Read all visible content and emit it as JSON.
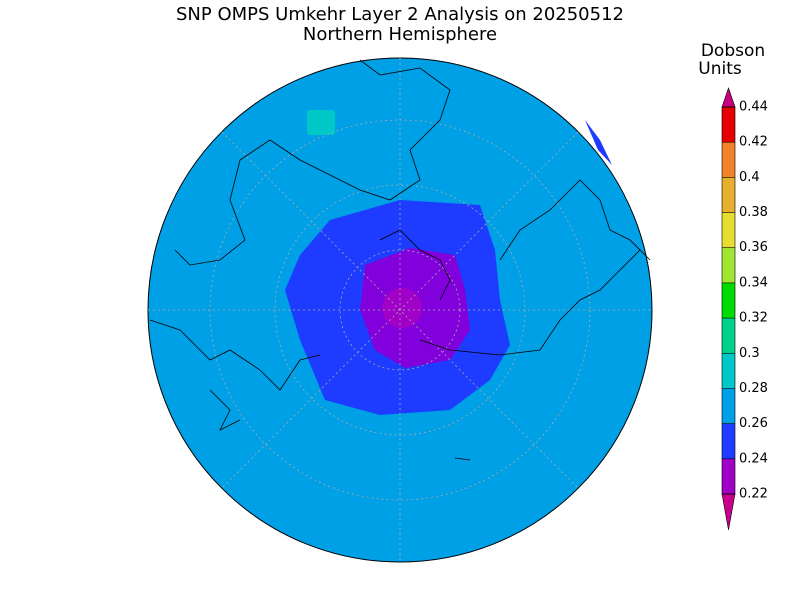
{
  "header": {
    "title": "SNP OMPS Umkehr Layer 2 Analysis on 20250512",
    "subtitle": "Northern Hemisphere"
  },
  "colorbar": {
    "label": [
      "Dobson",
      "Units"
    ],
    "ticks": [
      0.22,
      0.24,
      0.26,
      0.28,
      0.3,
      0.32,
      0.34,
      0.36,
      0.38,
      0.4,
      0.42,
      0.44
    ],
    "colors": [
      "#a000c8",
      "#1e3cff",
      "#00a0e6",
      "#00c8c8",
      "#00d28c",
      "#00dc00",
      "#a0e632",
      "#e6dc32",
      "#e6af2d",
      "#f08228",
      "#e60000"
    ],
    "under": "#c8008c",
    "over": "#c8007f"
  }
}
